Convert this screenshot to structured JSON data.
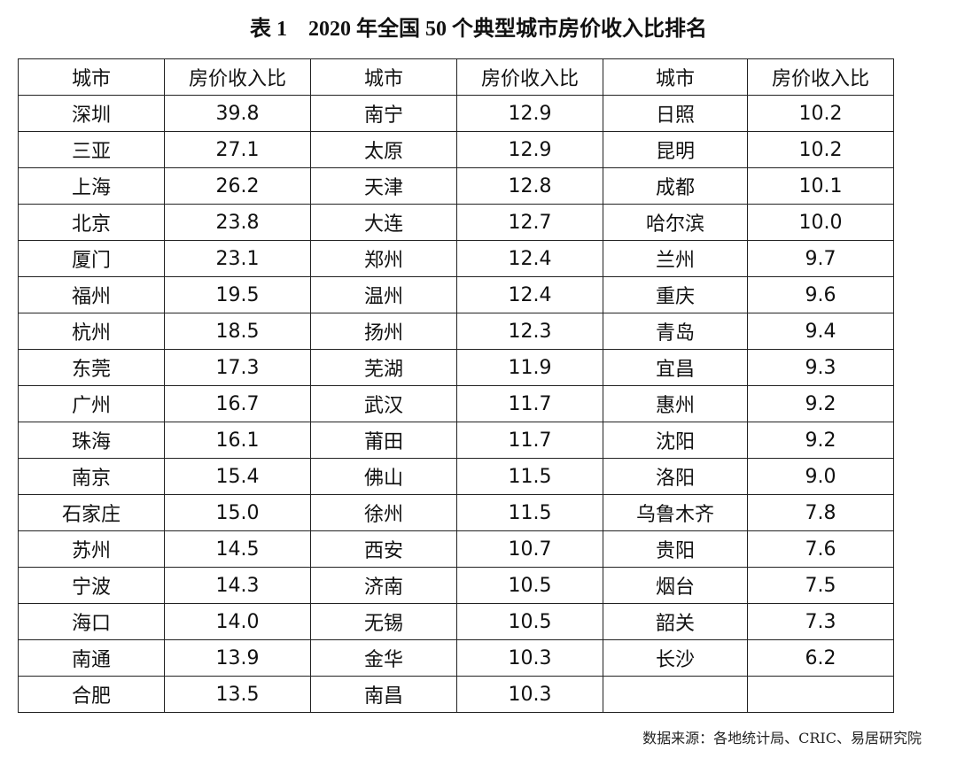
{
  "title": "表 1　2020 年全国 50 个典型城市房价收入比排名",
  "table": {
    "header": [
      "城市",
      "房价收入比",
      "城市",
      "房价收入比",
      "城市",
      "房价收入比"
    ],
    "rows": [
      [
        "深圳",
        "39.8",
        "南宁",
        "12.9",
        "日照",
        "10.2"
      ],
      [
        "三亚",
        "27.1",
        "太原",
        "12.9",
        "昆明",
        "10.2"
      ],
      [
        "上海",
        "26.2",
        "天津",
        "12.8",
        "成都",
        "10.1"
      ],
      [
        "北京",
        "23.8",
        "大连",
        "12.7",
        "哈尔滨",
        "10.0"
      ],
      [
        "厦门",
        "23.1",
        "郑州",
        "12.4",
        "兰州",
        "9.7"
      ],
      [
        "福州",
        "19.5",
        "温州",
        "12.4",
        "重庆",
        "9.6"
      ],
      [
        "杭州",
        "18.5",
        "扬州",
        "12.3",
        "青岛",
        "9.4"
      ],
      [
        "东莞",
        "17.3",
        "芜湖",
        "11.9",
        "宜昌",
        "9.3"
      ],
      [
        "广州",
        "16.7",
        "武汉",
        "11.7",
        "惠州",
        "9.2"
      ],
      [
        "珠海",
        "16.1",
        "莆田",
        "11.7",
        "沈阳",
        "9.2"
      ],
      [
        "南京",
        "15.4",
        "佛山",
        "11.5",
        "洛阳",
        "9.0"
      ],
      [
        "石家庄",
        "15.0",
        "徐州",
        "11.5",
        "乌鲁木齐",
        "7.8"
      ],
      [
        "苏州",
        "14.5",
        "西安",
        "10.7",
        "贵阳",
        "7.6"
      ],
      [
        "宁波",
        "14.3",
        "济南",
        "10.5",
        "烟台",
        "7.5"
      ],
      [
        "海口",
        "14.0",
        "无锡",
        "10.5",
        "韶关",
        "7.3"
      ],
      [
        "南通",
        "13.9",
        "金华",
        "10.3",
        "长沙",
        "6.2"
      ],
      [
        "合肥",
        "13.5",
        "南昌",
        "10.3"
      ]
    ]
  },
  "source": "数据来源：各地统计局、CRIC、易居研究院"
}
